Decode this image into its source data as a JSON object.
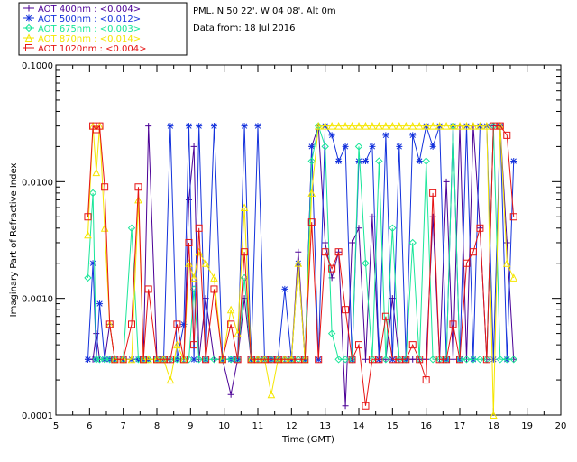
{
  "header": {
    "location": "PML, N 50 22', W 04 08', Alt 0m",
    "date": "Data from: 18 Jul 2016"
  },
  "legend": [
    {
      "label": "AOT  400nm : <0.004>",
      "color": "#4b0096"
    },
    {
      "label": "AOT  500nm : <0.012>",
      "color": "#1432dc"
    },
    {
      "label": "AOT  675nm : <0.003>",
      "color": "#19e699"
    },
    {
      "label": "AOT  870nm : <0.014>",
      "color": "#f5e600"
    },
    {
      "label": "AOT 1020nm : <0.004>",
      "color": "#e61414"
    }
  ],
  "chart_data": {
    "type": "line",
    "title": "",
    "xlabel": "Time (GMT)",
    "ylabel": "Imaginary Part of Refractive Index",
    "xlim": [
      5,
      20
    ],
    "ylim": [
      0.0001,
      0.1
    ],
    "yscale": "log",
    "x_ticks": [
      5,
      6,
      7,
      8,
      9,
      10,
      11,
      12,
      13,
      14,
      15,
      16,
      17,
      18,
      19,
      20
    ],
    "y_ticks": [
      {
        "value": 0.0001,
        "label": "0.0001"
      },
      {
        "value": 0.001,
        "label": "0.0010"
      },
      {
        "value": 0.01,
        "label": "0.0100"
      },
      {
        "value": 0.1,
        "label": "0.1000"
      }
    ],
    "series": [
      {
        "name": "AOT  400nm",
        "marker": "plus",
        "x": [
          5.95,
          6.1,
          6.2,
          6.3,
          6.45,
          6.6,
          6.75,
          7.0,
          7.25,
          7.45,
          7.6,
          7.75,
          8.0,
          8.2,
          8.4,
          8.6,
          8.8,
          8.95,
          9.1,
          9.25,
          9.45,
          9.7,
          9.95,
          10.2,
          10.4,
          10.6,
          10.8,
          11.0,
          11.2,
          11.4,
          11.6,
          11.8,
          12.0,
          12.2,
          12.4,
          12.6,
          12.8,
          13.0,
          13.2,
          13.4,
          13.6,
          13.8,
          14.0,
          14.2,
          14.4,
          14.6,
          14.8,
          15.0,
          15.2,
          15.4,
          15.6,
          15.8,
          16.0,
          16.2,
          16.4,
          16.6,
          16.8,
          17.0,
          17.2,
          17.4,
          17.6,
          17.8,
          18.0,
          18.2,
          18.4,
          18.6
        ],
        "y": [
          0.0003,
          0.0003,
          0.0005,
          0.0003,
          0.0003,
          0.0006,
          0.0003,
          0.0003,
          0.0003,
          0.0003,
          0.0003,
          0.03,
          0.0003,
          0.0003,
          0.0003,
          0.0003,
          0.0003,
          0.007,
          0.02,
          0.0003,
          0.001,
          0.0003,
          0.0003,
          0.00015,
          0.0003,
          0.001,
          0.0003,
          0.0003,
          0.0003,
          0.0003,
          0.0003,
          0.0003,
          0.0003,
          0.0025,
          0.0003,
          0.02,
          0.03,
          0.003,
          0.0015,
          0.0025,
          0.00012,
          0.003,
          0.004,
          0.0003,
          0.005,
          0.0003,
          0.0003,
          0.001,
          0.0003,
          0.0003,
          0.0003,
          0.0003,
          0.0003,
          0.005,
          0.0003,
          0.01,
          0.0003,
          0.03,
          0.0003,
          0.03,
          0.004,
          0.0003,
          0.03,
          0.03,
          0.003,
          0.0003
        ]
      },
      {
        "name": "AOT  500nm",
        "marker": "asterisk",
        "x": [
          5.95,
          6.1,
          6.2,
          6.3,
          6.45,
          6.6,
          6.75,
          7.0,
          7.25,
          7.45,
          7.6,
          7.75,
          8.0,
          8.2,
          8.4,
          8.6,
          8.8,
          8.95,
          9.1,
          9.25,
          9.45,
          9.7,
          9.95,
          10.2,
          10.4,
          10.6,
          10.8,
          11.0,
          11.2,
          11.4,
          11.6,
          11.8,
          12.0,
          12.2,
          12.4,
          12.6,
          12.8,
          13.0,
          13.2,
          13.4,
          13.6,
          13.8,
          14.0,
          14.2,
          14.4,
          14.6,
          14.8,
          15.0,
          15.2,
          15.4,
          15.6,
          15.8,
          16.0,
          16.2,
          16.4,
          16.6,
          16.8,
          17.0,
          17.2,
          17.4,
          17.6,
          17.8,
          18.0,
          18.2,
          18.4,
          18.6
        ],
        "y": [
          0.0003,
          0.002,
          0.0003,
          0.0009,
          0.0003,
          0.0003,
          0.0003,
          0.0003,
          0.0003,
          0.0003,
          0.0003,
          0.0003,
          0.0003,
          0.0003,
          0.03,
          0.0003,
          0.0006,
          0.03,
          0.0003,
          0.03,
          0.0003,
          0.03,
          0.0003,
          0.0003,
          0.0003,
          0.03,
          0.0003,
          0.03,
          0.0003,
          0.0003,
          0.0003,
          0.0012,
          0.0003,
          0.002,
          0.0003,
          0.02,
          0.0003,
          0.03,
          0.025,
          0.015,
          0.02,
          0.0003,
          0.015,
          0.015,
          0.02,
          0.0003,
          0.025,
          0.0003,
          0.02,
          0.0003,
          0.025,
          0.015,
          0.03,
          0.02,
          0.03,
          0.0003,
          0.03,
          0.0003,
          0.03,
          0.0003,
          0.03,
          0.03,
          0.0003,
          0.03,
          0.0003,
          0.015
        ]
      },
      {
        "name": "AOT  675nm",
        "marker": "diamond",
        "x": [
          5.95,
          6.1,
          6.2,
          6.3,
          6.45,
          6.6,
          6.75,
          7.0,
          7.25,
          7.45,
          7.6,
          7.75,
          8.0,
          8.2,
          8.4,
          8.6,
          8.8,
          8.95,
          9.1,
          9.25,
          9.45,
          9.7,
          9.95,
          10.2,
          10.4,
          10.6,
          10.8,
          11.0,
          11.2,
          11.4,
          11.6,
          11.8,
          12.0,
          12.2,
          12.4,
          12.6,
          12.8,
          13.0,
          13.2,
          13.4,
          13.6,
          13.8,
          14.0,
          14.2,
          14.4,
          14.6,
          14.8,
          15.0,
          15.2,
          15.4,
          15.6,
          15.8,
          16.0,
          16.2,
          16.4,
          16.6,
          16.8,
          17.0,
          17.2,
          17.4,
          17.6,
          17.8,
          18.0,
          18.2,
          18.4,
          18.6
        ],
        "y": [
          0.0015,
          0.008,
          0.0003,
          0.0003,
          0.0003,
          0.0003,
          0.0003,
          0.0003,
          0.004,
          0.0003,
          0.0003,
          0.0003,
          0.0003,
          0.0003,
          0.0003,
          0.0003,
          0.0003,
          0.0003,
          0.0012,
          0.0003,
          0.0003,
          0.0003,
          0.0003,
          0.0003,
          0.0003,
          0.0015,
          0.0003,
          0.0003,
          0.0003,
          0.0003,
          0.0003,
          0.0003,
          0.0003,
          0.0003,
          0.0003,
          0.015,
          0.03,
          0.02,
          0.0005,
          0.0003,
          0.0003,
          0.0003,
          0.02,
          0.002,
          0.0003,
          0.015,
          0.0003,
          0.004,
          0.0003,
          0.0003,
          0.003,
          0.0003,
          0.015,
          0.0003,
          0.0003,
          0.0003,
          0.03,
          0.0003,
          0.0003,
          0.0003,
          0.0003,
          0.0003,
          0.03,
          0.0003,
          0.0003,
          0.0003
        ]
      },
      {
        "name": "AOT  870nm",
        "marker": "triangle",
        "x": [
          5.95,
          6.1,
          6.2,
          6.3,
          6.45,
          6.6,
          6.75,
          7.0,
          7.25,
          7.45,
          7.6,
          7.75,
          8.0,
          8.2,
          8.4,
          8.6,
          8.8,
          8.95,
          9.1,
          9.25,
          9.45,
          9.7,
          9.95,
          10.2,
          10.4,
          10.6,
          10.8,
          11.0,
          11.2,
          11.4,
          11.6,
          11.8,
          12.0,
          12.2,
          12.4,
          12.6,
          12.8,
          13.0,
          13.2,
          13.4,
          13.6,
          13.8,
          14.0,
          14.2,
          14.4,
          14.6,
          14.8,
          15.0,
          15.2,
          15.4,
          15.6,
          15.8,
          16.0,
          16.2,
          16.4,
          16.6,
          16.8,
          17.0,
          17.2,
          17.4,
          17.6,
          17.8,
          18.0,
          18.2,
          18.4,
          18.6
        ],
        "y": [
          0.0035,
          0.03,
          0.012,
          0.03,
          0.004,
          0.0006,
          0.0003,
          0.0003,
          0.0003,
          0.007,
          0.0003,
          0.0003,
          0.0003,
          0.0003,
          0.0002,
          0.0004,
          0.0003,
          0.002,
          0.0015,
          0.0025,
          0.002,
          0.0015,
          0.0003,
          0.0008,
          0.0005,
          0.006,
          0.0003,
          0.0003,
          0.0003,
          0.00015,
          0.0003,
          0.0003,
          0.0003,
          0.002,
          0.0003,
          0.008,
          0.03,
          0.03,
          0.03,
          0.03,
          0.03,
          0.03,
          0.03,
          0.03,
          0.03,
          0.03,
          0.03,
          0.03,
          0.03,
          0.03,
          0.03,
          0.03,
          0.03,
          0.03,
          0.03,
          0.03,
          0.03,
          0.03,
          0.03,
          0.03,
          0.03,
          0.03,
          0.0001,
          0.03,
          0.002,
          0.0015
        ]
      },
      {
        "name": "AOT 1020nm",
        "marker": "square",
        "x": [
          5.95,
          6.1,
          6.2,
          6.3,
          6.45,
          6.6,
          6.75,
          7.0,
          7.25,
          7.45,
          7.6,
          7.75,
          8.0,
          8.2,
          8.4,
          8.6,
          8.8,
          8.95,
          9.1,
          9.25,
          9.45,
          9.7,
          9.95,
          10.2,
          10.4,
          10.6,
          10.8,
          11.0,
          11.2,
          11.4,
          11.6,
          11.8,
          12.0,
          12.2,
          12.4,
          12.6,
          12.8,
          13.0,
          13.2,
          13.4,
          13.6,
          13.8,
          14.0,
          14.2,
          14.4,
          14.6,
          14.8,
          15.0,
          15.2,
          15.4,
          15.6,
          15.8,
          16.0,
          16.2,
          16.4,
          16.6,
          16.8,
          17.0,
          17.2,
          17.4,
          17.6,
          17.8,
          18.0,
          18.2,
          18.4,
          18.6
        ],
        "y": [
          0.005,
          0.03,
          0.028,
          0.03,
          0.009,
          0.0006,
          0.0003,
          0.0003,
          0.0006,
          0.009,
          0.0003,
          0.0012,
          0.0003,
          0.0003,
          0.0003,
          0.0006,
          0.0003,
          0.003,
          0.0004,
          0.004,
          0.0003,
          0.0012,
          0.0003,
          0.0006,
          0.0003,
          0.0025,
          0.0003,
          0.0003,
          0.0003,
          0.0003,
          0.0003,
          0.0003,
          0.0003,
          0.0003,
          0.0003,
          0.0045,
          0.0003,
          0.0025,
          0.0018,
          0.0025,
          0.0008,
          0.0003,
          0.0004,
          0.00012,
          0.0003,
          0.0003,
          0.0007,
          0.0003,
          0.0003,
          0.0003,
          0.0004,
          0.0003,
          0.0002,
          0.008,
          0.0003,
          0.0003,
          0.0006,
          0.0003,
          0.002,
          0.0025,
          0.004,
          0.0003,
          0.03,
          0.03,
          0.025,
          0.005
        ]
      }
    ]
  }
}
